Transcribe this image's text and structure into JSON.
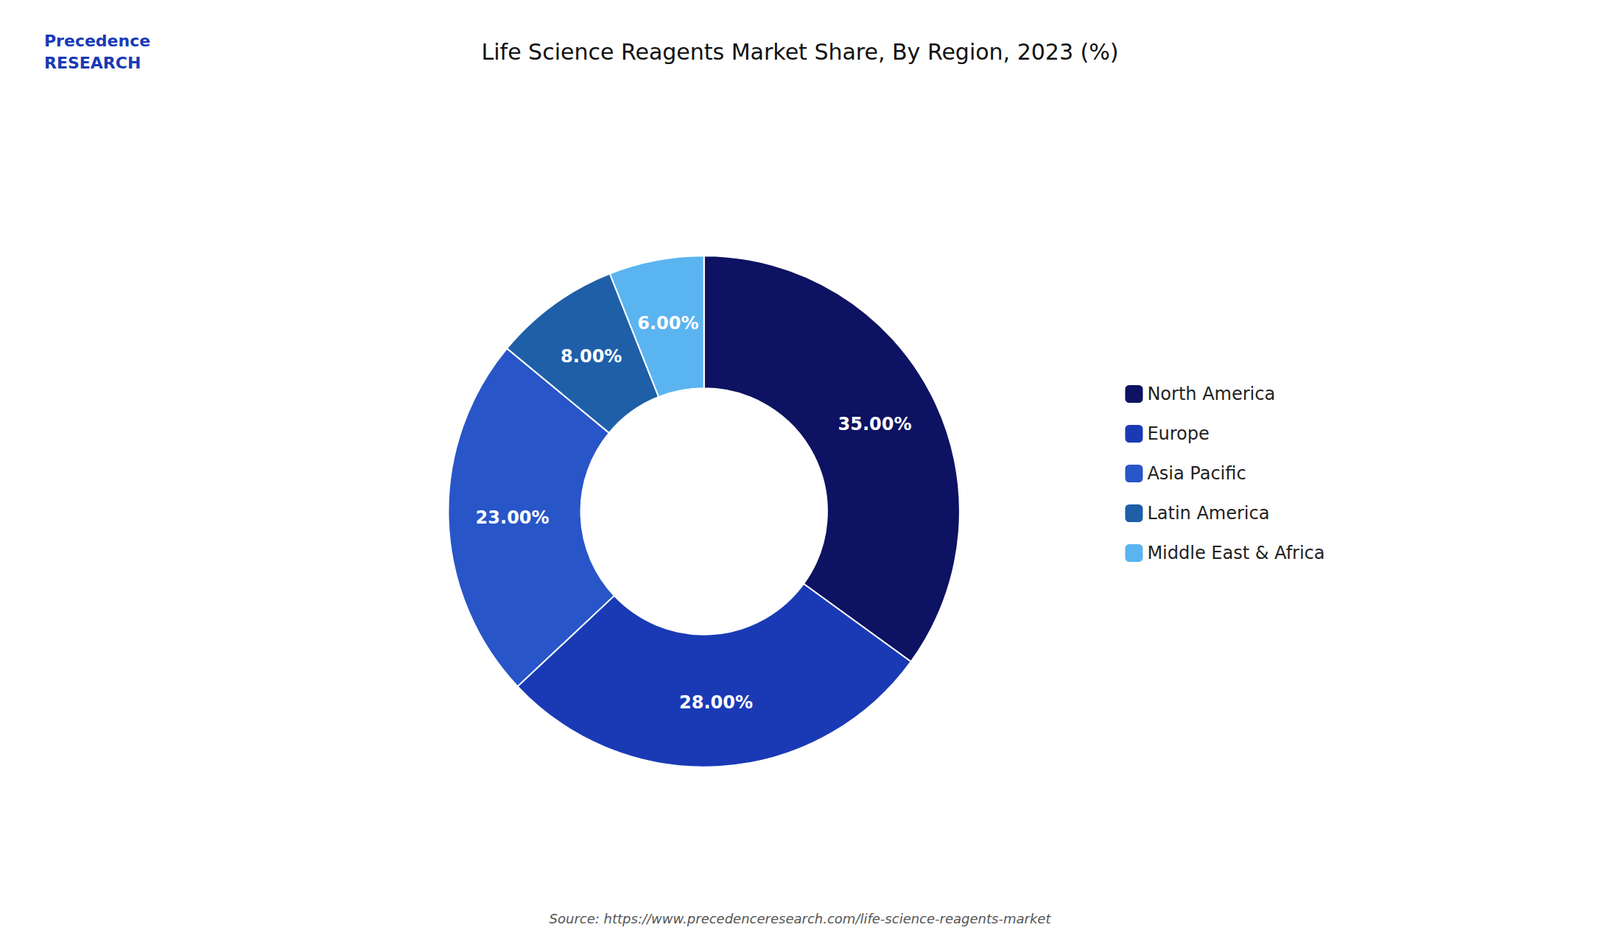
{
  "chart_data": {
    "type": "pie",
    "title": "Life Science Reagents Market Share, By Region, 2023 (%)",
    "categories": [
      "North America",
      "Europe",
      "Asia Pacific",
      "Latin America",
      "Middle East & Africa"
    ],
    "values": [
      35.0,
      28.0,
      23.0,
      8.0,
      6.0
    ],
    "value_labels": [
      "35.00%",
      "28.00%",
      "23.00%",
      "8.00%",
      "6.00%"
    ],
    "colors": [
      "#0d1262",
      "#1a3ab5",
      "#2855c8",
      "#1e5fa8",
      "#5ab4f0"
    ],
    "data_labels": true,
    "legend": "right",
    "annotations": [
      "Precedence\nRESEARCH",
      "Source: https://www.precedenceresearch.com/life-science-reagents-market"
    ]
  }
}
